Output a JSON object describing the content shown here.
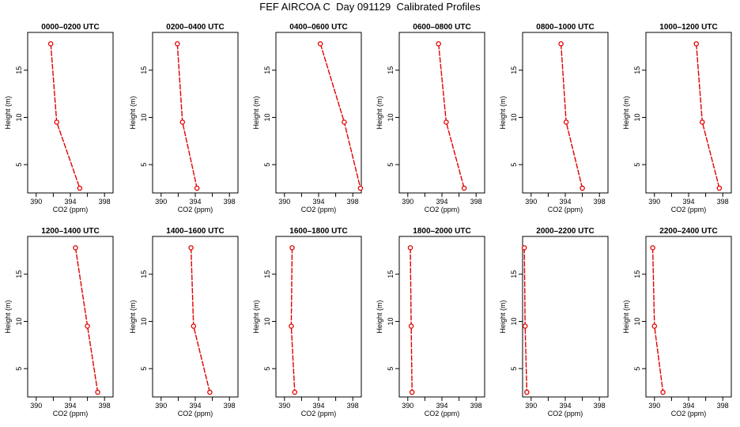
{
  "title": "FEF AIRCOA C  Day 091129  Calibrated Profiles",
  "colors": {
    "profile": "#e00000",
    "axis": "#000000",
    "background": "#ffffff"
  },
  "chart_data": [
    {
      "type": "line",
      "title": "0000–0200 UTC",
      "xlabel": "CO2 (ppm)",
      "ylabel": "Height (m)",
      "xlim": [
        389,
        399
      ],
      "ylim": [
        2,
        19
      ],
      "xticks": [
        390,
        394,
        398
      ],
      "xticks_unlabeled": [
        392,
        396
      ],
      "yticks": [
        5,
        10,
        15
      ],
      "x": [
        391.7,
        392.4,
        395.1
      ],
      "y": [
        17.8,
        9.5,
        2.5
      ]
    },
    {
      "type": "line",
      "title": "0200–0400 UTC",
      "xlabel": "CO2 (ppm)",
      "ylabel": "Height (m)",
      "xlim": [
        389,
        399
      ],
      "ylim": [
        2,
        19
      ],
      "xticks": [
        390,
        394,
        398
      ],
      "xticks_unlabeled": [
        392,
        396
      ],
      "yticks": [
        5,
        10,
        15
      ],
      "x": [
        391.9,
        392.5,
        394.2
      ],
      "y": [
        17.8,
        9.5,
        2.5
      ]
    },
    {
      "type": "line",
      "title": "0400–0600 UTC",
      "xlabel": "CO2 (ppm)",
      "ylabel": "Height (m)",
      "xlim": [
        389,
        399
      ],
      "ylim": [
        2,
        19
      ],
      "xticks": [
        390,
        394,
        398
      ],
      "xticks_unlabeled": [
        392,
        396
      ],
      "yticks": [
        5,
        10,
        15
      ],
      "x": [
        394.2,
        397.0,
        398.9
      ],
      "y": [
        17.8,
        9.5,
        2.5
      ]
    },
    {
      "type": "line",
      "title": "0600–0800 UTC",
      "xlabel": "CO2 (ppm)",
      "ylabel": "Height (m)",
      "xlim": [
        389,
        399
      ],
      "ylim": [
        2,
        19
      ],
      "xticks": [
        390,
        394,
        398
      ],
      "xticks_unlabeled": [
        392,
        396
      ],
      "yticks": [
        5,
        10,
        15
      ],
      "x": [
        393.6,
        394.5,
        396.6
      ],
      "y": [
        17.8,
        9.5,
        2.5
      ]
    },
    {
      "type": "line",
      "title": "0800–1000 UTC",
      "xlabel": "CO2 (ppm)",
      "ylabel": "Height (m)",
      "xlim": [
        389,
        399
      ],
      "ylim": [
        2,
        19
      ],
      "xticks": [
        390,
        394,
        398
      ],
      "xticks_unlabeled": [
        392,
        396
      ],
      "yticks": [
        5,
        10,
        15
      ],
      "x": [
        393.5,
        394.1,
        396.0
      ],
      "y": [
        17.8,
        9.5,
        2.5
      ]
    },
    {
      "type": "line",
      "title": "1000–1200 UTC",
      "xlabel": "CO2 (ppm)",
      "ylabel": "Height (m)",
      "xlim": [
        389,
        399
      ],
      "ylim": [
        2,
        19
      ],
      "xticks": [
        390,
        394,
        398
      ],
      "xticks_unlabeled": [
        392,
        396
      ],
      "yticks": [
        5,
        10,
        15
      ],
      "x": [
        394.9,
        395.6,
        397.6
      ],
      "y": [
        17.8,
        9.5,
        2.5
      ]
    },
    {
      "type": "line",
      "title": "1200–1400 UTC",
      "xlabel": "CO2 (ppm)",
      "ylabel": "Height (m)",
      "xlim": [
        389,
        399
      ],
      "ylim": [
        2,
        19
      ],
      "xticks": [
        390,
        394,
        398
      ],
      "xticks_unlabeled": [
        392,
        396
      ],
      "yticks": [
        5,
        10,
        15
      ],
      "x": [
        394.6,
        396.0,
        397.2
      ],
      "y": [
        17.8,
        9.5,
        2.5
      ]
    },
    {
      "type": "line",
      "title": "1400–1600 UTC",
      "xlabel": "CO2 (ppm)",
      "ylabel": "Height (m)",
      "xlim": [
        389,
        399
      ],
      "ylim": [
        2,
        19
      ],
      "xticks": [
        390,
        394,
        398
      ],
      "xticks_unlabeled": [
        392,
        396
      ],
      "yticks": [
        5,
        10,
        15
      ],
      "x": [
        393.5,
        393.8,
        395.7
      ],
      "y": [
        17.8,
        9.5,
        2.5
      ]
    },
    {
      "type": "line",
      "title": "1600–1800 UTC",
      "xlabel": "CO2 (ppm)",
      "ylabel": "Height (m)",
      "xlim": [
        389,
        399
      ],
      "ylim": [
        2,
        19
      ],
      "xticks": [
        390,
        394,
        398
      ],
      "xticks_unlabeled": [
        392,
        396
      ],
      "yticks": [
        5,
        10,
        15
      ],
      "x": [
        390.9,
        390.8,
        391.2
      ],
      "y": [
        17.8,
        9.5,
        2.5
      ]
    },
    {
      "type": "line",
      "title": "1800–2000 UTC",
      "xlabel": "CO2 (ppm)",
      "ylabel": "Height (m)",
      "xlim": [
        389,
        399
      ],
      "ylim": [
        2,
        19
      ],
      "xticks": [
        390,
        394,
        398
      ],
      "xticks_unlabeled": [
        392,
        396
      ],
      "yticks": [
        5,
        10,
        15
      ],
      "x": [
        390.3,
        390.4,
        390.5
      ],
      "y": [
        17.8,
        9.5,
        2.5
      ]
    },
    {
      "type": "line",
      "title": "2000–2200 UTC",
      "xlabel": "CO2 (ppm)",
      "ylabel": "Height (m)",
      "xlim": [
        389,
        399
      ],
      "ylim": [
        2,
        19
      ],
      "xticks": [
        390,
        394,
        398
      ],
      "xticks_unlabeled": [
        392,
        396
      ],
      "yticks": [
        5,
        10,
        15
      ],
      "x": [
        389.2,
        389.3,
        389.5
      ],
      "y": [
        17.8,
        9.5,
        2.5
      ]
    },
    {
      "type": "line",
      "title": "2200–2400 UTC",
      "xlabel": "CO2 (ppm)",
      "ylabel": "Height (m)",
      "xlim": [
        389,
        399
      ],
      "ylim": [
        2,
        19
      ],
      "xticks": [
        390,
        394,
        398
      ],
      "xticks_unlabeled": [
        392,
        396
      ],
      "yticks": [
        5,
        10,
        15
      ],
      "x": [
        389.8,
        390.0,
        391.0
      ],
      "y": [
        17.8,
        9.5,
        2.5
      ]
    }
  ]
}
